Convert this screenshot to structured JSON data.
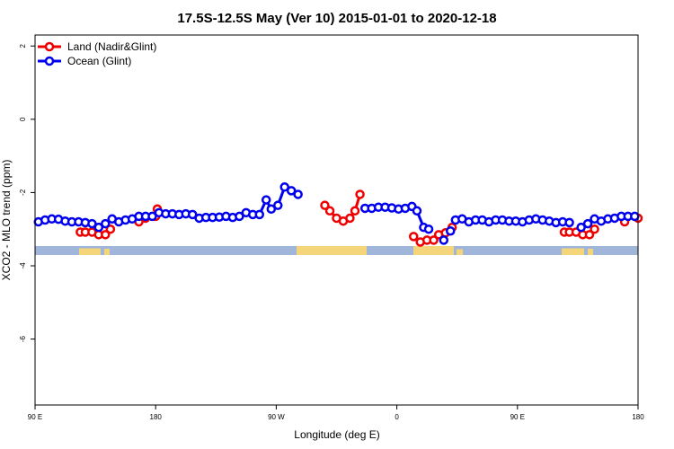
{
  "chart_data": {
    "type": "line",
    "title": "17.5S-12.5S May (Ver 10)   2015-01-01 to 2020-12-18",
    "xlabel": "Longitude (deg E)",
    "ylabel": "XCO2 - MLO trend (ppm)",
    "xlim": [
      90,
      450
    ],
    "ylim": [
      -7.8,
      2.3
    ],
    "x_ticks": [
      {
        "value": 90,
        "label": "90 E"
      },
      {
        "value": 162,
        "label": "180"
      },
      {
        "value": 234,
        "label": "90 W"
      },
      {
        "value": 306,
        "label": "0"
      },
      {
        "value": 378,
        "label": "90 E"
      },
      {
        "value": 450,
        "label": "180"
      }
    ],
    "y_ticks": [
      {
        "value": 2,
        "label": "2"
      },
      {
        "value": 0,
        "label": "0"
      },
      {
        "value": -2,
        "label": "-2"
      },
      {
        "value": -4,
        "label": "-4"
      },
      {
        "value": -6,
        "label": "-6"
      }
    ],
    "legend_position": "top-left",
    "series": [
      {
        "name": "Land (Nadir&Glint)",
        "color": "#ee0000",
        "points": [
          [
            117,
            -3.08
          ],
          [
            120,
            -3.08
          ],
          [
            124,
            -3.08
          ],
          [
            128,
            -3.15
          ],
          [
            132,
            -3.15
          ],
          [
            135,
            -3.0
          ],
          [
            152,
            -2.8
          ],
          [
            156,
            -2.7
          ],
          [
            162,
            -2.65
          ],
          [
            163,
            -2.45
          ],
          [
            263,
            -2.35
          ],
          [
            266,
            -2.5
          ],
          [
            270,
            -2.7
          ],
          [
            274,
            -2.78
          ],
          [
            278,
            -2.7
          ],
          [
            281,
            -2.5
          ],
          [
            284,
            -2.05
          ],
          [
            316,
            -3.2
          ],
          [
            320,
            -3.35
          ],
          [
            324,
            -3.3
          ],
          [
            328,
            -3.3
          ],
          [
            331,
            -3.15
          ],
          [
            335,
            -3.1
          ],
          [
            339,
            -2.95
          ],
          [
            406,
            -3.08
          ],
          [
            409,
            -3.08
          ],
          [
            413,
            -3.08
          ],
          [
            417,
            -3.15
          ],
          [
            421,
            -3.15
          ],
          [
            424,
            -3.0
          ],
          [
            442,
            -2.8
          ],
          [
            450,
            -2.7
          ]
        ]
      },
      {
        "name": "Ocean (Glint)",
        "color": "#0000ee",
        "points": [
          [
            92,
            -2.8
          ],
          [
            96,
            -2.75
          ],
          [
            100,
            -2.72
          ],
          [
            104,
            -2.73
          ],
          [
            108,
            -2.78
          ],
          [
            112,
            -2.8
          ],
          [
            116,
            -2.8
          ],
          [
            120,
            -2.82
          ],
          [
            124,
            -2.85
          ],
          [
            128,
            -2.95
          ],
          [
            132,
            -2.85
          ],
          [
            136,
            -2.72
          ],
          [
            140,
            -2.8
          ],
          [
            144,
            -2.75
          ],
          [
            148,
            -2.72
          ],
          [
            152,
            -2.65
          ],
          [
            156,
            -2.65
          ],
          [
            160,
            -2.65
          ],
          [
            164,
            -2.55
          ],
          [
            168,
            -2.58
          ],
          [
            172,
            -2.58
          ],
          [
            176,
            -2.6
          ],
          [
            180,
            -2.58
          ],
          [
            184,
            -2.6
          ],
          [
            188,
            -2.7
          ],
          [
            192,
            -2.68
          ],
          [
            196,
            -2.68
          ],
          [
            200,
            -2.67
          ],
          [
            204,
            -2.65
          ],
          [
            208,
            -2.68
          ],
          [
            212,
            -2.65
          ],
          [
            216,
            -2.55
          ],
          [
            220,
            -2.6
          ],
          [
            224,
            -2.6
          ],
          [
            228,
            -2.2
          ],
          [
            231,
            -2.45
          ],
          [
            235,
            -2.35
          ],
          [
            239,
            -1.85
          ],
          [
            243,
            -1.95
          ],
          [
            247,
            -2.05
          ],
          [
            287,
            -2.43
          ],
          [
            291,
            -2.43
          ],
          [
            295,
            -2.4
          ],
          [
            299,
            -2.4
          ],
          [
            303,
            -2.42
          ],
          [
            307,
            -2.45
          ],
          [
            311,
            -2.43
          ],
          [
            315,
            -2.38
          ],
          [
            318,
            -2.5
          ],
          [
            322,
            -2.95
          ],
          [
            325,
            -3.0
          ],
          [
            334,
            -3.3
          ],
          [
            338,
            -3.05
          ],
          [
            341,
            -2.75
          ],
          [
            345,
            -2.72
          ],
          [
            349,
            -2.8
          ],
          [
            353,
            -2.75
          ],
          [
            357,
            -2.75
          ],
          [
            361,
            -2.8
          ],
          [
            365,
            -2.75
          ],
          [
            369,
            -2.75
          ],
          [
            373,
            -2.78
          ],
          [
            377,
            -2.78
          ],
          [
            381,
            -2.8
          ],
          [
            385,
            -2.75
          ],
          [
            389,
            -2.72
          ],
          [
            393,
            -2.75
          ],
          [
            397,
            -2.78
          ],
          [
            401,
            -2.82
          ],
          [
            405,
            -2.8
          ],
          [
            409,
            -2.82
          ],
          [
            416,
            -2.95
          ],
          [
            420,
            -2.85
          ],
          [
            424,
            -2.72
          ],
          [
            428,
            -2.78
          ],
          [
            432,
            -2.72
          ],
          [
            436,
            -2.7
          ],
          [
            440,
            -2.65
          ],
          [
            444,
            -2.65
          ],
          [
            448,
            -2.65
          ]
        ]
      }
    ]
  }
}
